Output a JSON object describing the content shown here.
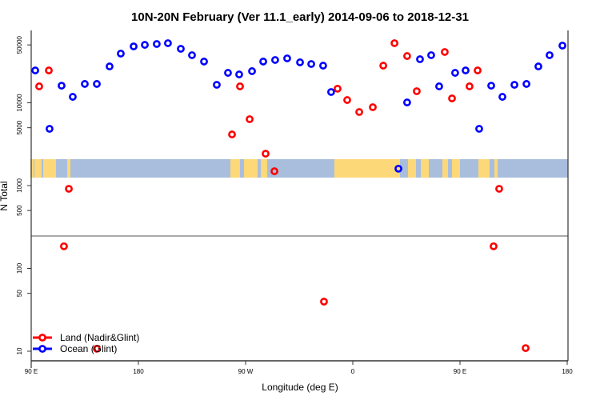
{
  "chart_data": {
    "type": "scatter",
    "title": "10N-20N February (Ver 11.1_early)   2014-09-06 to 2018-12-31",
    "xlabel": "Longitude (deg E)",
    "ylabel": "N Total",
    "x_scale": "linear",
    "y_scale": "log",
    "xlim": [
      90,
      540
    ],
    "ylim": [
      8.5,
      60000
    ],
    "x_ticks": [
      {
        "value": 90,
        "label": "90 E"
      },
      {
        "value": 180,
        "label": "180"
      },
      {
        "value": 270,
        "label": "90 W"
      },
      {
        "value": 360,
        "label": "0"
      },
      {
        "value": 450,
        "label": "90 E"
      },
      {
        "value": 540,
        "label": "180"
      }
    ],
    "y_ticks": [
      {
        "value": 10,
        "label": "10"
      },
      {
        "value": 50,
        "label": "50"
      },
      {
        "value": 100,
        "label": "100"
      },
      {
        "value": 500,
        "label": "500"
      },
      {
        "value": 1000,
        "label": "1000"
      },
      {
        "value": 5000,
        "label": "5000"
      },
      {
        "value": 10000,
        "label": "10000"
      },
      {
        "value": 50000,
        "label": "50000"
      }
    ],
    "legend": {
      "position": "bottom-left",
      "entries": [
        {
          "label": "Land (Nadir&Glint)",
          "color": "#ff0000"
        },
        {
          "label": "Ocean (Glint)",
          "color": "#0000ff"
        }
      ]
    },
    "series": [
      {
        "name": "Land (Nadir&Glint)",
        "color": "#ff0000",
        "points": [
          [
            96.7,
            15800
          ],
          [
            104.8,
            24600
          ],
          [
            117.5,
            185
          ],
          [
            121.6,
            915
          ],
          [
            145.1,
            10.7
          ],
          [
            258.6,
            4150
          ],
          [
            265.3,
            15800
          ],
          [
            273.4,
            6340
          ],
          [
            286.8,
            2430
          ],
          [
            294.2,
            1490
          ],
          [
            335.8,
            39.7
          ],
          [
            347.2,
            14800
          ],
          [
            355.3,
            10800
          ],
          [
            365.4,
            7740
          ],
          [
            376.8,
            8850
          ],
          [
            385.6,
            28100
          ],
          [
            395.0,
            52500
          ],
          [
            405.6,
            36700
          ],
          [
            413.7,
            13800
          ],
          [
            437.2,
            41100
          ],
          [
            443.3,
            11300
          ],
          [
            458.0,
            15800
          ],
          [
            464.8,
            24600
          ],
          [
            478.2,
            185
          ],
          [
            482.9,
            915
          ],
          [
            505.1,
            10.9
          ]
        ]
      },
      {
        "name": "Ocean (Glint)",
        "color": "#0000ff",
        "points": [
          [
            93.4,
            24600
          ],
          [
            105.4,
            4850
          ],
          [
            115.5,
            16100
          ],
          [
            124.9,
            11800
          ],
          [
            135.0,
            16900
          ],
          [
            145.1,
            16900
          ],
          [
            155.8,
            27500
          ],
          [
            165.2,
            39300
          ],
          [
            176.0,
            48000
          ],
          [
            185.4,
            50100
          ],
          [
            195.4,
            51300
          ],
          [
            204.8,
            52500
          ],
          [
            215.6,
            44900
          ],
          [
            225.0,
            37600
          ],
          [
            235.1,
            31500
          ],
          [
            245.8,
            16500
          ],
          [
            255.2,
            23000
          ],
          [
            264.6,
            22000
          ],
          [
            275.4,
            24100
          ],
          [
            284.8,
            31500
          ],
          [
            294.8,
            32900
          ],
          [
            304.9,
            34400
          ],
          [
            315.7,
            30800
          ],
          [
            325.1,
            29400
          ],
          [
            335.1,
            28100
          ],
          [
            341.8,
            13500
          ],
          [
            398.3,
            1600
          ],
          [
            405.6,
            10100
          ],
          [
            416.4,
            33600
          ],
          [
            425.8,
            37600
          ],
          [
            432.5,
            15800
          ],
          [
            445.9,
            23000
          ],
          [
            454.7,
            24600
          ],
          [
            466.1,
            4850
          ],
          [
            476.2,
            16100
          ],
          [
            485.6,
            11800
          ],
          [
            495.7,
            16500
          ],
          [
            505.8,
            16900
          ],
          [
            515.8,
            27500
          ],
          [
            525.2,
            37600
          ],
          [
            536.0,
            49100
          ]
        ]
      }
    ],
    "map_strip": {
      "ocean_color": "#a8bedc",
      "land_color": "#fdd878"
    }
  }
}
